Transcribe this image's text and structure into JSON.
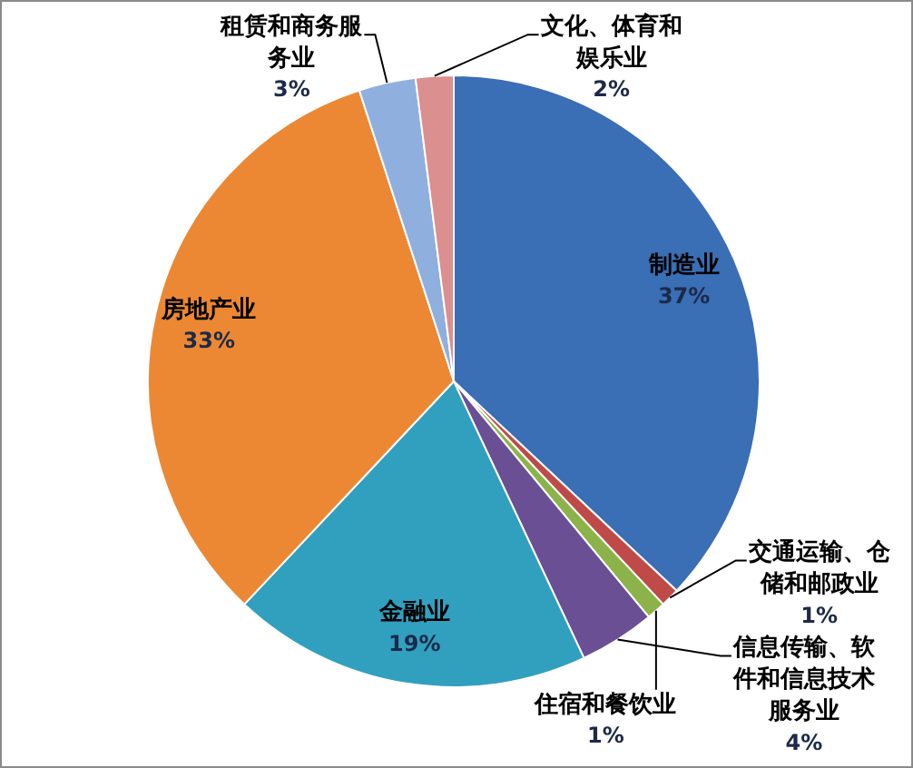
{
  "chart_data": {
    "type": "pie",
    "categories": [
      "制造业",
      "交通运输、仓储和邮政业",
      "住宿和餐饮业",
      "信息传输、软件和信息技术服务业",
      "金融业",
      "房地产业",
      "租赁和商务服务业",
      "文化、体育和娱乐业"
    ],
    "values": [
      37,
      1,
      1,
      4,
      19,
      33,
      3,
      2
    ],
    "colors": [
      "#3a6eb5",
      "#be4b48",
      "#8cb34a",
      "#6b4f94",
      "#31a0bf",
      "#ec8833",
      "#8fb0de",
      "#db8f8e"
    ],
    "value_labels": [
      "37%",
      "1%",
      "1%",
      "4%",
      "19%",
      "33%",
      "3%",
      "2%"
    ]
  }
}
